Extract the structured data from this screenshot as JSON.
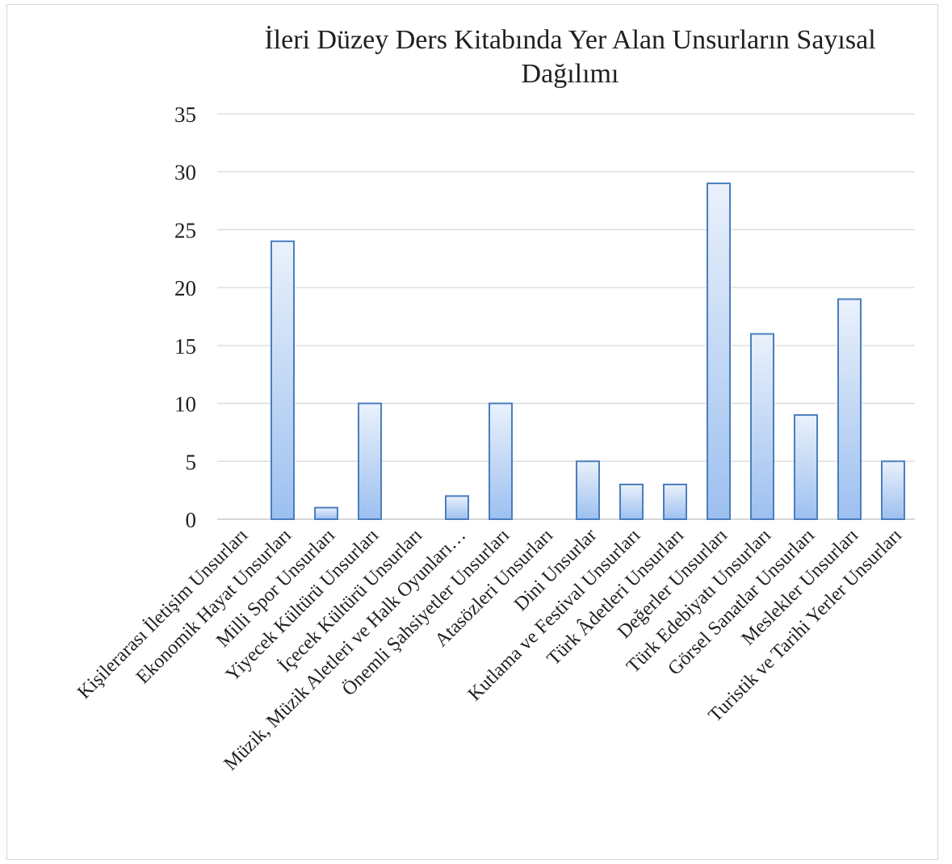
{
  "chart_data": {
    "type": "bar",
    "title": "İleri Düzey Ders Kitabında Yer Alan Unsurların Sayısal Dağılımı",
    "title_lines": [
      "İleri Düzey Ders Kitabında Yer Alan Unsurların Sayısal",
      "Dağılımı"
    ],
    "categories": [
      "Kişilerarası İletişim Unsurları",
      "Ekonomik Hayat Unsurları",
      "Milli Spor Unsurları",
      "Yiyecek Kültürü Unsurları",
      "İçecek Kültürü Unsurları",
      "Müzik, Müzik Aletleri ve Halk Oyunları…",
      "Önemli Şahsiyetler Unsurları",
      "Atasözleri Unsurları",
      "Dini Unsurlar",
      "Kutlama ve Festival Unsurları",
      "Türk Âdetleri Unsurları",
      "Değerler Unsurları",
      "Türk Edebiyatı Unsurları",
      "Görsel Sanatlar Unsurları",
      "Meslekler Unsurları",
      "Turistik ve Tarihi Yerler Unsurları"
    ],
    "values": [
      0,
      24,
      1,
      10,
      0,
      2,
      10,
      0,
      5,
      3,
      3,
      29,
      16,
      9,
      19,
      5
    ],
    "xlabel": "",
    "ylabel": "",
    "ylim": [
      0,
      35
    ],
    "yticks": [
      "0",
      "5",
      "10",
      "15",
      "20",
      "25",
      "30",
      "35"
    ],
    "grid": true,
    "legend": "none",
    "colors": {
      "bar_top": "#eaf1fb",
      "bar_bottom": "#9dc0f0",
      "bar_edge": "#4a7ebf",
      "grid": "#d9d9d9"
    }
  }
}
